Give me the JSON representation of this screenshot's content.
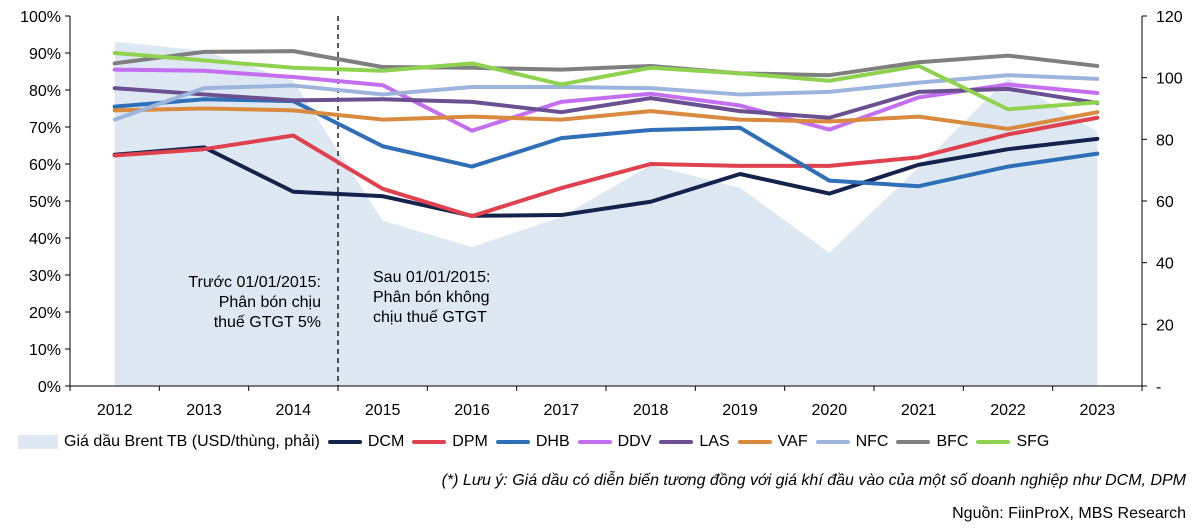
{
  "chart_data": {
    "type": "line",
    "categories": [
      "2012",
      "2013",
      "2014",
      "2015",
      "2016",
      "2017",
      "2018",
      "2019",
      "2020",
      "2021",
      "2022",
      "2023"
    ],
    "y_left": {
      "range": [
        0,
        100
      ],
      "ticks": [
        "0%",
        "10%",
        "20%",
        "30%",
        "40%",
        "50%",
        "60%",
        "70%",
        "80%",
        "90%",
        "100%"
      ]
    },
    "y_right": {
      "range": [
        0,
        120
      ],
      "ticks": [
        "-",
        "20",
        "40",
        "60",
        "80",
        "100",
        "120"
      ]
    },
    "area": {
      "name": "Giá dầu Brent TB (USD/thùng, phải)",
      "color": "#dde8f3",
      "values": [
        111.7,
        108.7,
        99.0,
        53.6,
        45.1,
        54.8,
        71.7,
        64.3,
        43.2,
        70.9,
        99.8,
        82.5
      ]
    },
    "series": [
      {
        "name": "DCM",
        "color": "#14234b",
        "values": [
          62.5,
          64.5,
          52.5,
          51.3,
          46.0,
          46.2,
          49.8,
          57.3,
          52.0,
          59.8,
          64.0,
          66.8
        ]
      },
      {
        "name": "DPM",
        "color": "#e0414f",
        "values": [
          62.3,
          64.0,
          67.7,
          53.3,
          45.9,
          53.5,
          60.0,
          59.5,
          59.5,
          61.8,
          68.0,
          72.5
        ]
      },
      {
        "name": "DHB",
        "color": "#2e6fb8",
        "values": [
          75.5,
          77.5,
          77.0,
          64.8,
          59.3,
          67.0,
          69.2,
          69.8,
          55.5,
          54.0,
          59.3,
          62.8
        ]
      },
      {
        "name": "DDV",
        "color": "#c36ff0",
        "values": [
          85.5,
          85.2,
          83.5,
          81.3,
          69.0,
          76.8,
          79.0,
          75.8,
          69.3,
          78.0,
          81.5,
          79.2
        ]
      },
      {
        "name": "LAS",
        "color": "#6a5090",
        "values": [
          80.5,
          78.8,
          77.2,
          77.5,
          76.8,
          74.0,
          77.8,
          74.3,
          72.5,
          79.5,
          80.3,
          76.5
        ]
      },
      {
        "name": "VAF",
        "color": "#d98a3f",
        "values": [
          74.5,
          75.0,
          74.5,
          72.0,
          72.8,
          72.0,
          74.3,
          72.0,
          71.5,
          72.8,
          69.5,
          74.0
        ]
      },
      {
        "name": "NFC",
        "color": "#9db5dc",
        "values": [
          72.0,
          80.5,
          81.2,
          78.8,
          80.8,
          80.8,
          80.5,
          78.8,
          79.5,
          82.0,
          84.0,
          83.0
        ]
      },
      {
        "name": "BFC",
        "color": "#7f7f7f",
        "values": [
          87.2,
          90.3,
          90.5,
          86.2,
          86.0,
          85.5,
          86.5,
          84.5,
          84.0,
          87.5,
          89.3,
          86.5
        ]
      },
      {
        "name": "SFG",
        "color": "#8fd24f",
        "values": [
          90.0,
          88.0,
          86.0,
          85.2,
          87.2,
          81.5,
          86.0,
          84.5,
          82.5,
          86.5,
          74.8,
          76.7
        ]
      }
    ],
    "annotations": {
      "before": [
        "Trước 01/01/2015:",
        "Phân bón chịu",
        "thuế GTGT 5%"
      ],
      "after": [
        "Sau 01/01/2015:",
        "Phân bón không",
        "chịu thuế GTGT"
      ]
    }
  },
  "note": "(*) Lưu ý: Giá dầu có diễn biến tương đồng với giá khí đầu vào của một số doanh nghiệp như DCM, DPM",
  "source": "Nguồn: FiinProX, MBS Research"
}
